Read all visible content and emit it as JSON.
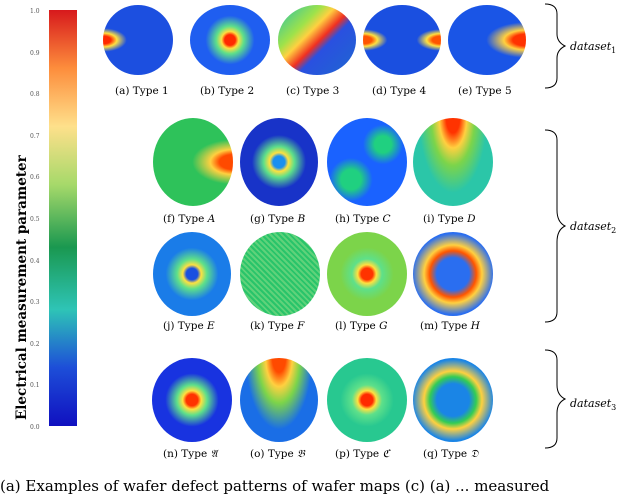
{
  "colorbar": {
    "label": "Electrical measurement parameter",
    "ticks": [
      "1.0",
      "0.9",
      "0.8",
      "0.7",
      "0.6",
      "0.5",
      "0.4",
      "0.3",
      "0.2",
      "0.1",
      "0.0"
    ],
    "colors": [
      "#d7191c",
      "#fd8d3c",
      "#fee08b",
      "#a6d96a",
      "#1a9850",
      "#2ec4b6",
      "#1d4ed8",
      "#1010c0"
    ]
  },
  "datasets": [
    {
      "label": "dataset",
      "sub": "1"
    },
    {
      "label": "dataset",
      "sub": "2"
    },
    {
      "label": "dataset",
      "sub": "3"
    }
  ],
  "captions": [
    {
      "letter": "(a)",
      "text": "Type 1",
      "italic": ""
    },
    {
      "letter": "(b)",
      "text": "Type 2",
      "italic": ""
    },
    {
      "letter": "(c)",
      "text": "Type 3",
      "italic": ""
    },
    {
      "letter": "(d)",
      "text": "Type 4",
      "italic": ""
    },
    {
      "letter": "(e)",
      "text": "Type 5",
      "italic": ""
    },
    {
      "letter": "(f)",
      "text": "Type ",
      "italic": "A"
    },
    {
      "letter": "(g)",
      "text": "Type ",
      "italic": "B"
    },
    {
      "letter": "(h)",
      "text": "Type ",
      "italic": "C"
    },
    {
      "letter": "(i)",
      "text": "Type ",
      "italic": "D"
    },
    {
      "letter": "(j)",
      "text": "Type ",
      "italic": "E"
    },
    {
      "letter": "(k)",
      "text": "Type ",
      "italic": "F"
    },
    {
      "letter": "(l)",
      "text": "Type ",
      "italic": "G"
    },
    {
      "letter": "(m)",
      "text": "Type ",
      "italic": "H"
    },
    {
      "letter": "(n)",
      "text": "Type ",
      "italic": "𝔄"
    },
    {
      "letter": "(o)",
      "text": "Type ",
      "italic": "𝔅"
    },
    {
      "letter": "(p)",
      "text": "Type ",
      "italic": "ℭ"
    },
    {
      "letter": "(q)",
      "text": "Type ",
      "italic": "𝔇"
    }
  ],
  "bottom_caption": "(a) Examples of wafer defect patterns of wafer maps (c) (a) ... measured"
}
